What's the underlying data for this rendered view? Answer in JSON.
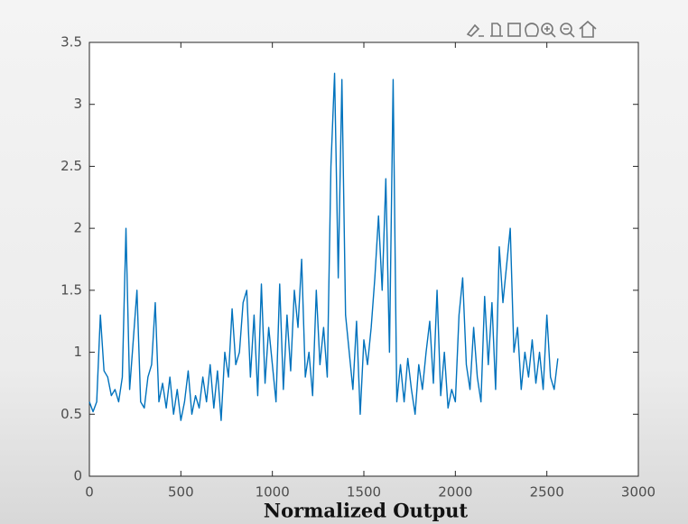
{
  "chart_data": {
    "type": "line",
    "caption": "Normalized Output",
    "x": [
      0,
      20,
      40,
      60,
      80,
      100,
      120,
      140,
      160,
      180,
      200,
      220,
      240,
      260,
      280,
      300,
      320,
      340,
      360,
      380,
      400,
      420,
      440,
      460,
      480,
      500,
      520,
      540,
      560,
      580,
      600,
      620,
      640,
      660,
      680,
      700,
      720,
      740,
      760,
      780,
      800,
      820,
      840,
      860,
      880,
      900,
      920,
      940,
      960,
      980,
      1000,
      1020,
      1040,
      1060,
      1080,
      1100,
      1120,
      1140,
      1160,
      1180,
      1200,
      1220,
      1240,
      1260,
      1280,
      1300,
      1320,
      1340,
      1360,
      1380,
      1400,
      1420,
      1440,
      1460,
      1480,
      1500,
      1520,
      1540,
      1560,
      1580,
      1600,
      1620,
      1640,
      1660,
      1680,
      1700,
      1720,
      1740,
      1760,
      1780,
      1800,
      1820,
      1840,
      1860,
      1880,
      1900,
      1920,
      1940,
      1960,
      1980,
      2000,
      2020,
      2040,
      2060,
      2080,
      2100,
      2120,
      2140,
      2160,
      2180,
      2200,
      2220,
      2240,
      2260,
      2280,
      2300,
      2320,
      2340,
      2360,
      2380,
      2400,
      2420,
      2440,
      2460,
      2480,
      2500,
      2520,
      2540,
      2560
    ],
    "series": [
      {
        "color": "#0072bd",
        "values": [
          0.6,
          0.52,
          0.6,
          1.3,
          0.85,
          0.8,
          0.65,
          0.7,
          0.6,
          0.8,
          2.0,
          0.7,
          1.1,
          1.5,
          0.6,
          0.55,
          0.8,
          0.9,
          1.4,
          0.6,
          0.75,
          0.55,
          0.8,
          0.5,
          0.7,
          0.45,
          0.6,
          0.85,
          0.5,
          0.65,
          0.55,
          0.8,
          0.6,
          0.9,
          0.55,
          0.85,
          0.45,
          1.0,
          0.8,
          1.35,
          0.9,
          1.0,
          1.4,
          1.5,
          0.8,
          1.3,
          0.65,
          1.55,
          0.75,
          1.2,
          0.9,
          0.6,
          1.55,
          0.7,
          1.3,
          0.85,
          1.5,
          1.2,
          1.75,
          0.8,
          1.0,
          0.65,
          1.5,
          0.9,
          1.2,
          0.8,
          2.5,
          3.25,
          1.6,
          3.2,
          1.3,
          1.0,
          0.7,
          1.25,
          0.5,
          1.1,
          0.9,
          1.2,
          1.6,
          2.1,
          1.5,
          2.4,
          1.0,
          3.2,
          0.6,
          0.9,
          0.6,
          0.95,
          0.7,
          0.5,
          0.9,
          0.7,
          1.0,
          1.25,
          0.75,
          1.5,
          0.65,
          1.0,
          0.55,
          0.7,
          0.6,
          1.3,
          1.6,
          0.9,
          0.7,
          1.2,
          0.8,
          0.6,
          1.45,
          0.9,
          1.4,
          0.7,
          1.85,
          1.4,
          1.7,
          2.0,
          1.0,
          1.2,
          0.7,
          1.0,
          0.8,
          1.1,
          0.75,
          1.0,
          0.7,
          1.3,
          0.8,
          0.7,
          0.95
        ]
      }
    ],
    "xlim": [
      0,
      3000
    ],
    "xticks": [
      0,
      500,
      1000,
      1500,
      2000,
      2500,
      3000
    ],
    "ylim": [
      0,
      3.5
    ],
    "yticks": [
      0,
      0.5,
      1,
      1.5,
      2,
      2.5,
      3,
      3.5
    ]
  }
}
